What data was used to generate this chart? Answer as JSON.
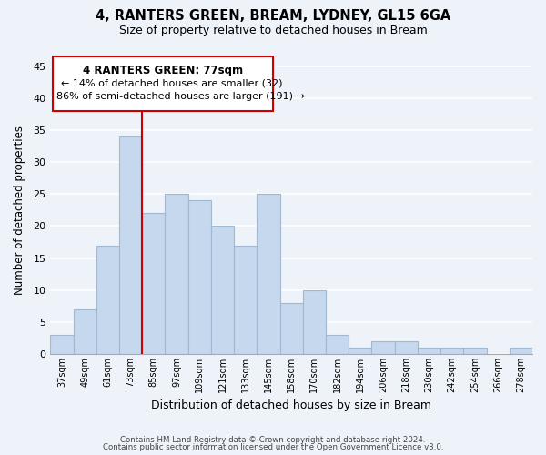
{
  "title": "4, RANTERS GREEN, BREAM, LYDNEY, GL15 6GA",
  "subtitle": "Size of property relative to detached houses in Bream",
  "xlabel": "Distribution of detached houses by size in Bream",
  "ylabel": "Number of detached properties",
  "bin_labels": [
    "37sqm",
    "49sqm",
    "61sqm",
    "73sqm",
    "85sqm",
    "97sqm",
    "109sqm",
    "121sqm",
    "133sqm",
    "145sqm",
    "158sqm",
    "170sqm",
    "182sqm",
    "194sqm",
    "206sqm",
    "218sqm",
    "230sqm",
    "242sqm",
    "254sqm",
    "266sqm",
    "278sqm"
  ],
  "bar_heights": [
    3,
    7,
    17,
    34,
    22,
    25,
    24,
    20,
    17,
    25,
    8,
    10,
    3,
    1,
    2,
    2,
    1,
    1,
    1,
    0,
    1
  ],
  "bar_color": "#c5d8ed",
  "bar_edgecolor": "#a0b8d0",
  "ylim": [
    0,
    45
  ],
  "yticks": [
    0,
    5,
    10,
    15,
    20,
    25,
    30,
    35,
    40,
    45
  ],
  "annotation_title": "4 RANTERS GREEN: 77sqm",
  "annotation_line1": "← 14% of detached houses are smaller (32)",
  "annotation_line2": "86% of semi-detached houses are larger (191) →",
  "annotation_box_edgecolor": "#cc0000",
  "red_line_index": 3.33,
  "footer_line1": "Contains HM Land Registry data © Crown copyright and database right 2024.",
  "footer_line2": "Contains public sector information licensed under the Open Government Licence v3.0.",
  "background_color": "#eef3fa",
  "grid_color": "#ffffff"
}
